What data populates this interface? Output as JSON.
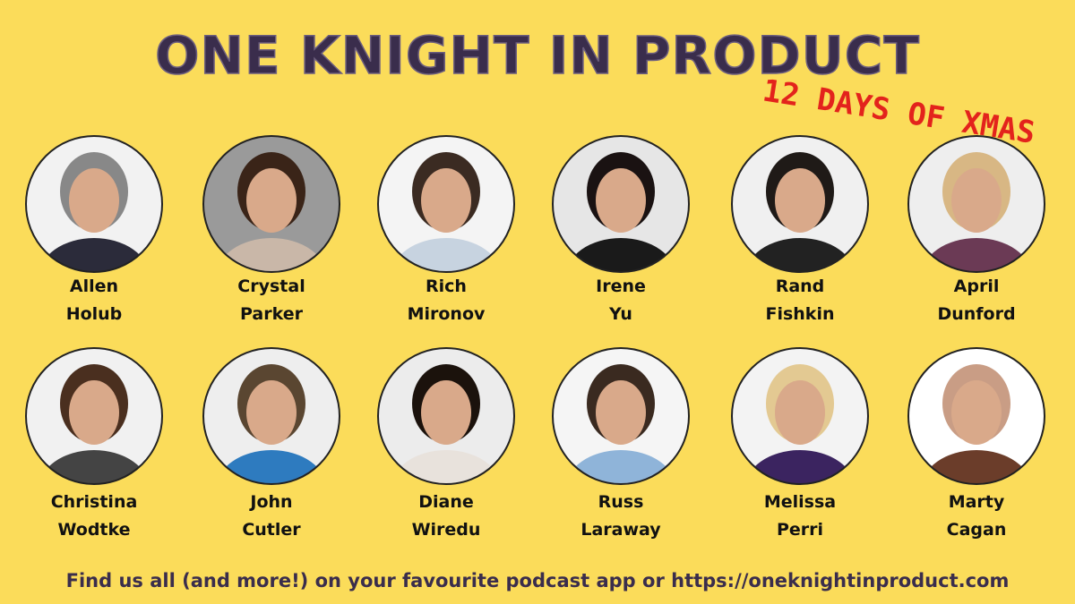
{
  "header": {
    "title": "ONE KNIGHT IN PRODUCT",
    "subtitle": "12 DAYS OF XMAS"
  },
  "guests": [
    {
      "first": "Allen",
      "last": "Holub"
    },
    {
      "first": "Crystal",
      "last": "Parker"
    },
    {
      "first": "Rich",
      "last": "Mironov"
    },
    {
      "first": "Irene",
      "last": "Yu"
    },
    {
      "first": "Rand",
      "last": "Fishkin"
    },
    {
      "first": "April",
      "last": "Dunford"
    },
    {
      "first": "Christina",
      "last": "Wodtke"
    },
    {
      "first": "John",
      "last": "Cutler"
    },
    {
      "first": "Diane",
      "last": "Wiredu"
    },
    {
      "first": "Russ",
      "last": "Laraway"
    },
    {
      "first": "Melissa",
      "last": "Perri"
    },
    {
      "first": "Marty",
      "last": "Cagan"
    }
  ],
  "footer": "Find us all (and more!) on your favourite podcast app or https://oneknightinproduct.com"
}
